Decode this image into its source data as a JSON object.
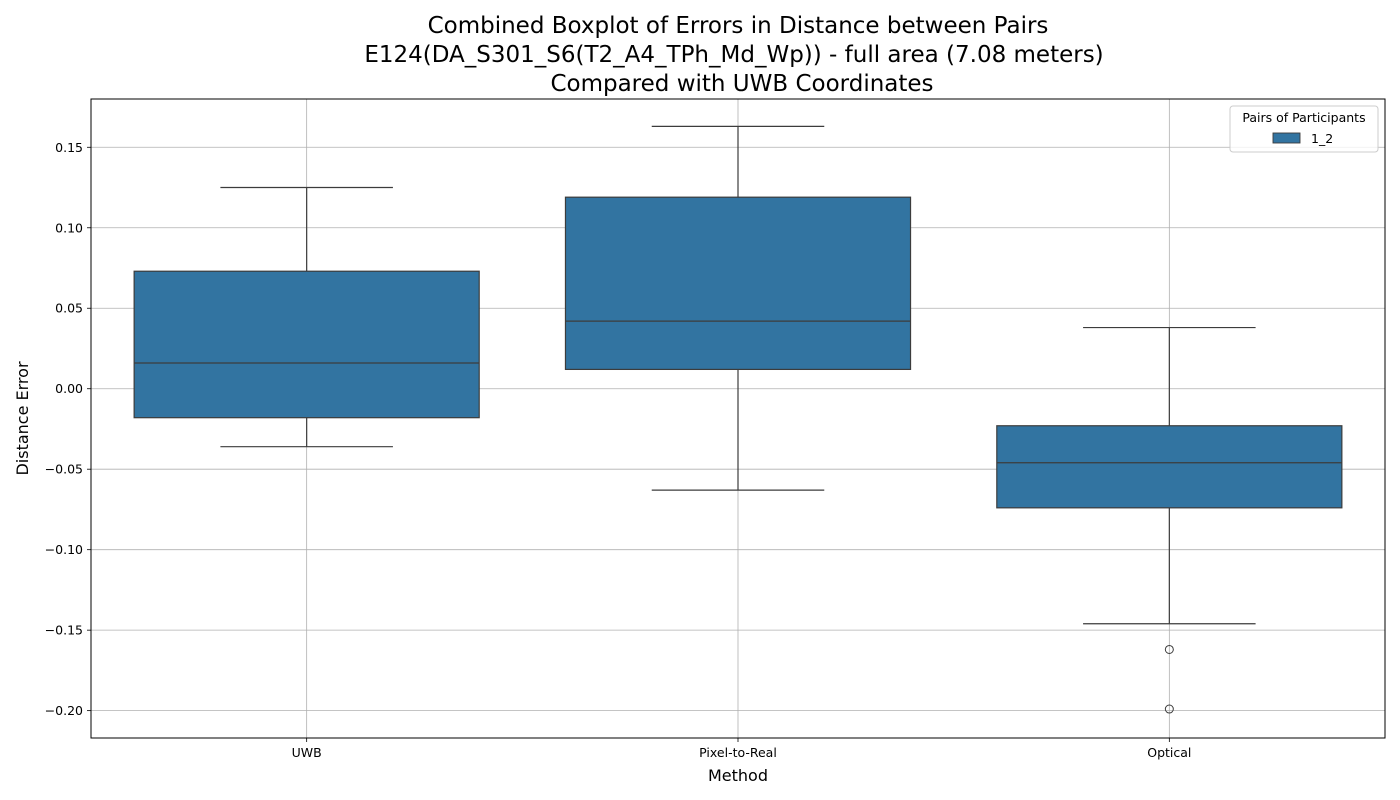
{
  "chart_data": {
    "type": "boxplot",
    "title": [
      "Combined Boxplot of Errors in Distance between Pairs",
      "E124(DA_S301_S6(T2_A4_TPh_Md_Wp)) - full area (7.08 meters)",
      "Compared with UWB Coordinates"
    ],
    "xlabel": "Method",
    "ylabel": "Distance Error",
    "categories": [
      "UWB",
      "Pixel-to-Real",
      "Optical"
    ],
    "ylim": [
      -0.217,
      0.18
    ],
    "yticks": [
      -0.2,
      -0.15,
      -0.1,
      -0.05,
      0.0,
      0.05,
      0.1,
      0.15
    ],
    "ytick_labels": [
      "−0.20",
      "−0.15",
      "−0.10",
      "−0.05",
      "0.00",
      "0.05",
      "0.10",
      "0.15"
    ],
    "grid": true,
    "legend": {
      "title": "Pairs of Participants",
      "placement": "top-right",
      "entries": [
        "1_2"
      ]
    },
    "series": [
      {
        "name": "1_2",
        "color": "#3274a1",
        "boxes": [
          {
            "category": "UWB",
            "whisker_low": -0.036,
            "q1": -0.018,
            "median": 0.016,
            "q3": 0.073,
            "whisker_high": 0.125,
            "outliers": []
          },
          {
            "category": "Pixel-to-Real",
            "whisker_low": -0.063,
            "q1": 0.012,
            "median": 0.042,
            "q3": 0.119,
            "whisker_high": 0.163,
            "outliers": []
          },
          {
            "category": "Optical",
            "whisker_low": -0.146,
            "q1": -0.074,
            "median": -0.046,
            "q3": -0.023,
            "whisker_high": 0.038,
            "outliers": [
              -0.162,
              -0.199
            ]
          }
        ]
      }
    ]
  }
}
